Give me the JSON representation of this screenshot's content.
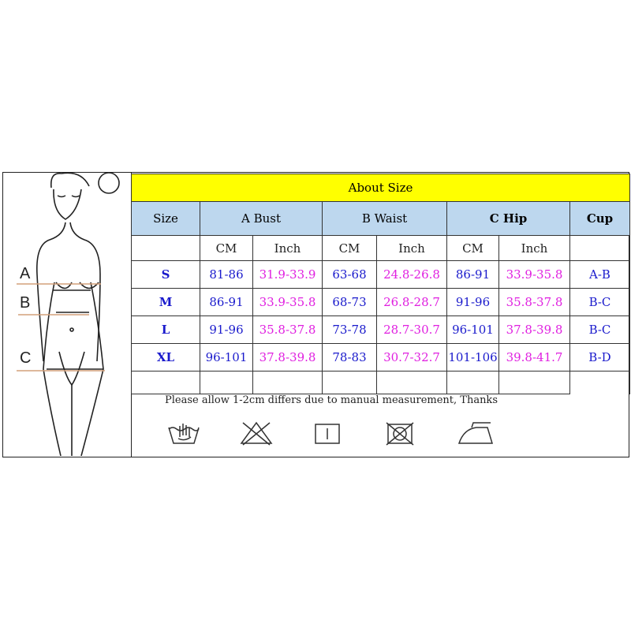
{
  "title": "About Size",
  "headers": {
    "size": "Size",
    "bust": "A Bust",
    "waist": "B Waist",
    "hip": "C Hip",
    "cup": "Cup"
  },
  "units": {
    "cm": "CM",
    "inch": "Inch"
  },
  "rows": [
    {
      "size": "S",
      "bust_cm": "81-86",
      "bust_in": "31.9-33.9",
      "waist_cm": "63-68",
      "waist_in": "24.8-26.8",
      "hip_cm": "86-91",
      "hip_in": "33.9-35.8",
      "cup": "A-B"
    },
    {
      "size": "M",
      "bust_cm": "86-91",
      "bust_in": "33.9-35.8",
      "waist_cm": "68-73",
      "waist_in": "26.8-28.7",
      "hip_cm": "91-96",
      "hip_in": "35.8-37.8",
      "cup": "B-C"
    },
    {
      "size": "L",
      "bust_cm": "91-96",
      "bust_in": "35.8-37.8",
      "waist_cm": "73-78",
      "waist_in": "28.7-30.7",
      "hip_cm": "96-101",
      "hip_in": "37.8-39.8",
      "cup": "B-C"
    },
    {
      "size": "XL",
      "bust_cm": "96-101",
      "bust_in": "37.8-39.8",
      "waist_cm": "78-83",
      "waist_in": "30.7-32.7",
      "hip_cm": "101-106",
      "hip_in": "39.8-41.7",
      "cup": "B-D"
    }
  ],
  "note": "Please allow 1-2cm differs due to manual measurement, Thanks",
  "figure_labels": {
    "a": "A",
    "b": "B",
    "c": "C"
  },
  "care_icons": [
    "hand-wash-icon",
    "do-not-bleach-icon",
    "line-dry-icon",
    "do-not-tumble-dry-icon",
    "iron-icon"
  ],
  "colors": {
    "title_bg": "#ffff00",
    "header_bg": "#bdd7ee",
    "cm_text": "#1a1acc",
    "inch_text": "#e020e0",
    "measure_line": "#d4a07a"
  }
}
